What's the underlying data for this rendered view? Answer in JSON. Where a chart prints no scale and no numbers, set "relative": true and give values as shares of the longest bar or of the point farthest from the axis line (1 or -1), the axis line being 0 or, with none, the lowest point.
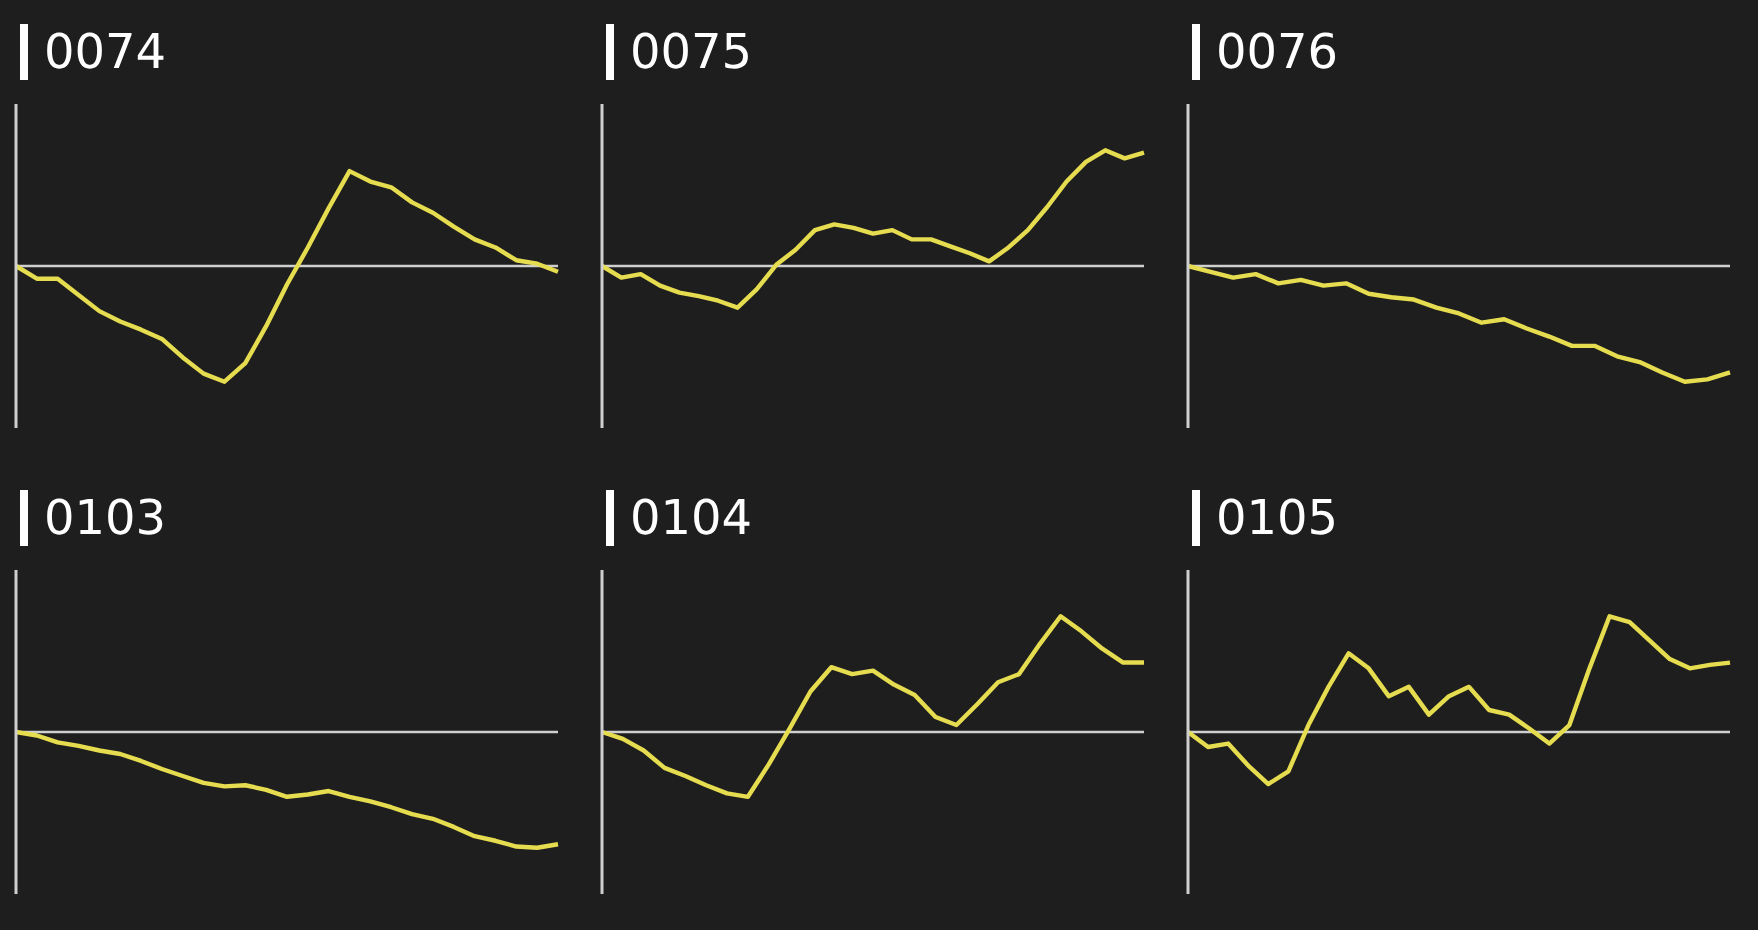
{
  "chart_data": [
    {
      "type": "line",
      "title": "0074",
      "relative": true,
      "categories": [
        null,
        null,
        null,
        null,
        null,
        null,
        null,
        null,
        null,
        null,
        null,
        null,
        null,
        null,
        null,
        null,
        null,
        null,
        null,
        null,
        null,
        null,
        null,
        null,
        null,
        null,
        null
      ],
      "series": [
        {
          "color": "#e6dc50",
          "values": [
            0,
            -0.11,
            -0.11,
            -0.25,
            -0.39,
            -0.48,
            -0.55,
            -0.63,
            -0.79,
            -0.93,
            -1,
            -0.84,
            -0.52,
            -0.16,
            0.16,
            0.5,
            0.82,
            0.73,
            0.68,
            0.55,
            0.46,
            0.34,
            0.23,
            0.16,
            0.05,
            0.02,
            -0.05
          ]
        }
      ]
    },
    {
      "type": "line",
      "title": "0075",
      "relative": true,
      "categories": [
        null,
        null,
        null,
        null,
        null,
        null,
        null,
        null,
        null,
        null,
        null,
        null,
        null,
        null,
        null,
        null,
        null,
        null,
        null,
        null,
        null,
        null,
        null,
        null,
        null,
        null,
        null,
        null,
        null
      ],
      "series": [
        {
          "color": "#e6dc50",
          "values": [
            0,
            -0.1,
            -0.07,
            -0.17,
            -0.23,
            -0.26,
            -0.3,
            -0.36,
            -0.2,
            0.01,
            0.14,
            0.31,
            0.36,
            0.33,
            0.28,
            0.31,
            0.23,
            0.23,
            0.17,
            0.11,
            0.04,
            0.16,
            0.31,
            0.51,
            0.73,
            0.9,
            1,
            0.93,
            0.98
          ]
        }
      ]
    },
    {
      "type": "line",
      "title": "0076",
      "relative": true,
      "categories": [
        null,
        null,
        null,
        null,
        null,
        null,
        null,
        null,
        null,
        null,
        null,
        null,
        null,
        null,
        null,
        null,
        null,
        null,
        null,
        null,
        null,
        null,
        null,
        null,
        null
      ],
      "series": [
        {
          "color": "#e6dc50",
          "values": [
            0,
            -0.05,
            -0.1,
            -0.07,
            -0.15,
            -0.12,
            -0.17,
            -0.15,
            -0.24,
            -0.27,
            -0.29,
            -0.36,
            -0.41,
            -0.49,
            -0.46,
            -0.54,
            -0.61,
            -0.69,
            -0.69,
            -0.78,
            -0.83,
            -0.92,
            -1,
            -0.98,
            -0.92
          ]
        }
      ]
    },
    {
      "type": "line",
      "title": "0103",
      "relative": true,
      "categories": [
        null,
        null,
        null,
        null,
        null,
        null,
        null,
        null,
        null,
        null,
        null,
        null,
        null,
        null,
        null,
        null,
        null,
        null,
        null,
        null,
        null,
        null,
        null,
        null,
        null,
        null,
        null
      ],
      "series": [
        {
          "color": "#e6dc50",
          "values": [
            0,
            -0.03,
            -0.09,
            -0.12,
            -0.16,
            -0.19,
            -0.25,
            -0.32,
            -0.38,
            -0.44,
            -0.47,
            -0.46,
            -0.5,
            -0.56,
            -0.54,
            -0.51,
            -0.56,
            -0.6,
            -0.65,
            -0.71,
            -0.75,
            -0.82,
            -0.9,
            -0.94,
            -0.99,
            -1,
            -0.97
          ]
        }
      ]
    },
    {
      "type": "line",
      "title": "0104",
      "relative": true,
      "categories": [
        null,
        null,
        null,
        null,
        null,
        null,
        null,
        null,
        null,
        null,
        null,
        null,
        null,
        null,
        null,
        null,
        null,
        null,
        null,
        null,
        null,
        null,
        null,
        null,
        null,
        null,
        null
      ],
      "series": [
        {
          "color": "#e6dc50",
          "values": [
            0,
            -0.06,
            -0.16,
            -0.31,
            -0.38,
            -0.46,
            -0.53,
            -0.56,
            -0.28,
            0.03,
            0.35,
            0.56,
            0.5,
            0.53,
            0.41,
            0.32,
            0.13,
            0.06,
            0.24,
            0.43,
            0.5,
            0.76,
            1,
            0.87,
            0.72,
            0.6,
            0.6
          ]
        }
      ]
    },
    {
      "type": "line",
      "title": "0105",
      "relative": true,
      "categories": [
        null,
        null,
        null,
        null,
        null,
        null,
        null,
        null,
        null,
        null,
        null,
        null,
        null,
        null,
        null,
        null,
        null,
        null,
        null,
        null,
        null,
        null,
        null,
        null,
        null,
        null,
        null,
        null
      ],
      "series": [
        {
          "color": "#e6dc50",
          "values": [
            0,
            -0.13,
            -0.1,
            -0.29,
            -0.45,
            -0.34,
            0.06,
            0.39,
            0.68,
            0.55,
            0.31,
            0.39,
            0.15,
            0.31,
            0.39,
            0.19,
            0.15,
            0.03,
            -0.1,
            0.06,
            0.55,
            1,
            0.95,
            0.79,
            0.63,
            0.55,
            0.58,
            0.6
          ]
        }
      ]
    }
  ]
}
